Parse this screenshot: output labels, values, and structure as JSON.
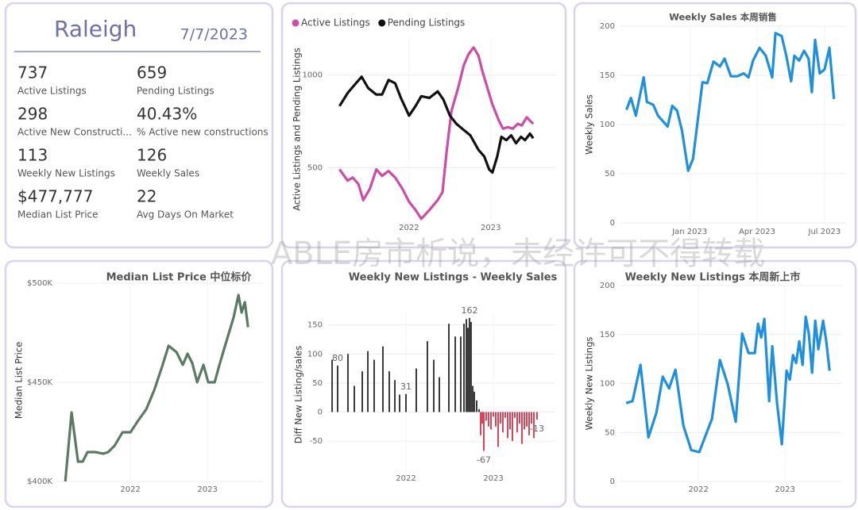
{
  "kpi": {
    "title": "Raleigh",
    "date": "7/7/2023",
    "items": [
      {
        "value": "737",
        "label": "Active Listings"
      },
      {
        "value": "659",
        "label": "Pending Listings"
      },
      {
        "value": "298",
        "label": "Active New Constructi..."
      },
      {
        "value": "40.43%",
        "label": "% Active new constructions"
      },
      {
        "value": "113",
        "label": "Weekly New Listings"
      },
      {
        "value": "126",
        "label": "Weekly Sales"
      },
      {
        "value": "$477,777",
        "label": "Median List Price"
      },
      {
        "value": "22",
        "label": "Avg Days On Market"
      }
    ]
  },
  "watermark": "ABLE房市析说，未经许可不得转载",
  "chart_data": [
    {
      "type": "line",
      "ylabel": "Active Listings and Pending Listings",
      "legend": "top-left",
      "grid": true,
      "xlim": [
        2021.0,
        2023.8
      ],
      "xticks": [
        2022,
        2023
      ],
      "ylim": [
        215,
        1200
      ],
      "yticks": [
        500,
        1000
      ],
      "series": [
        {
          "name": "Active Listings",
          "color": "#d04aa8",
          "x": [
            2021.15,
            2021.25,
            2021.31,
            2021.38,
            2021.44,
            2021.52,
            2021.6,
            2021.67,
            2021.75,
            2021.83,
            2021.92,
            2022.0,
            2022.08,
            2022.15,
            2022.25,
            2022.35,
            2022.41,
            2022.46,
            2022.52,
            2022.6,
            2022.67,
            2022.73,
            2022.79,
            2022.85,
            2022.9,
            2022.96,
            2023.02,
            2023.1,
            2023.15,
            2023.21,
            2023.27,
            2023.33,
            2023.38,
            2023.44,
            2023.48,
            2023.52
          ],
          "values": [
            491,
            430,
            447,
            412,
            325,
            386,
            491,
            456,
            482,
            447,
            386,
            316,
            272,
            224,
            272,
            325,
            368,
            588,
            807,
            930,
            1053,
            1114,
            1149,
            1105,
            1018,
            930,
            842,
            754,
            711,
            719,
            711,
            737,
            728,
            772,
            754,
            737
          ]
        },
        {
          "name": "Pending Listings",
          "color": "#111111",
          "x": [
            2021.15,
            2021.25,
            2021.35,
            2021.42,
            2021.5,
            2021.6,
            2021.67,
            2021.75,
            2021.83,
            2021.9,
            2022.0,
            2022.08,
            2022.15,
            2022.25,
            2022.35,
            2022.42,
            2022.5,
            2022.58,
            2022.65,
            2022.75,
            2022.85,
            2022.92,
            2022.98,
            2023.02,
            2023.08,
            2023.13,
            2023.19,
            2023.25,
            2023.31,
            2023.37,
            2023.42,
            2023.48,
            2023.52
          ],
          "values": [
            833,
            904,
            956,
            991,
            930,
            895,
            895,
            974,
            956,
            877,
            781,
            833,
            886,
            877,
            912,
            868,
            781,
            737,
            711,
            675,
            596,
            561,
            491,
            474,
            561,
            667,
            649,
            675,
            632,
            667,
            649,
            684,
            659
          ]
        }
      ]
    },
    {
      "type": "line",
      "title": "Weekly Sales 本周销售",
      "ylabel": "Weekly Sales",
      "grid": true,
      "color": "#1f8fe0",
      "xlim": [
        2022.74,
        2023.58
      ],
      "xticks": [
        {
          "value": 2023.0,
          "label": "Jan 2023"
        },
        {
          "value": 2023.25,
          "label": "Apr 2023"
        },
        {
          "value": 2023.5,
          "label": "Jul 2023"
        }
      ],
      "ylim": [
        0,
        200
      ],
      "yticks": [
        0,
        50,
        100,
        150,
        200
      ],
      "x": [
        2022.765,
        2022.782,
        2022.8,
        2022.829,
        2022.841,
        2022.865,
        2022.882,
        2022.918,
        2022.935,
        2022.953,
        2022.971,
        2022.994,
        2023.012,
        2023.047,
        2023.065,
        2023.088,
        2023.112,
        2023.129,
        2023.153,
        2023.176,
        2023.2,
        2023.218,
        2023.235,
        2023.259,
        2023.282,
        2023.306,
        2023.318,
        2023.341,
        2023.359,
        2023.376,
        2023.388,
        2023.406,
        2023.424,
        2023.441,
        2023.453,
        2023.465,
        2023.482,
        2023.5,
        2023.518,
        2023.535
      ],
      "values": [
        115,
        127,
        109,
        148,
        123,
        120,
        109,
        98,
        119,
        114,
        94,
        53,
        65,
        143,
        142,
        164,
        159,
        167,
        149,
        149,
        152,
        148,
        165,
        178,
        170,
        148,
        193,
        190,
        169,
        144,
        170,
        165,
        175,
        167,
        133,
        186,
        152,
        156,
        178,
        126
      ]
    },
    {
      "type": "line",
      "title": "Median List Price  中位标价",
      "ylabel": "Median List Price",
      "grid": true,
      "color": "#5a7a63",
      "xlim": [
        2021.05,
        2023.72
      ],
      "xticks": [
        2022,
        2023
      ],
      "ylim": [
        400000,
        502000
      ],
      "yticks": [
        {
          "value": 400000,
          "label": "$400K"
        },
        {
          "value": 450000,
          "label": "$450K"
        },
        {
          "value": 500000,
          "label": "$500K"
        }
      ],
      "x": [
        2021.155,
        2021.237,
        2021.32,
        2021.381,
        2021.443,
        2021.546,
        2021.649,
        2021.711,
        2021.794,
        2021.897,
        2022.0,
        2022.103,
        2022.206,
        2022.309,
        2022.412,
        2022.495,
        2022.598,
        2022.68,
        2022.742,
        2022.804,
        2022.866,
        2022.948,
        2023.01,
        2023.093,
        2023.155,
        2023.216,
        2023.278,
        2023.34,
        2023.402,
        2023.443,
        2023.485,
        2023.526
      ],
      "values": [
        400000,
        434800,
        410000,
        410000,
        414800,
        414800,
        414000,
        414800,
        418000,
        424800,
        424800,
        430800,
        436400,
        446000,
        458000,
        468400,
        465200,
        458800,
        464400,
        459600,
        450000,
        458800,
        450000,
        450000,
        458800,
        466800,
        474800,
        482800,
        494000,
        485200,
        490400,
        477777
      ]
    },
    {
      "type": "bar",
      "title": "Weekly New Listings - Weekly Sales",
      "ylabel": "Diff New Listing/sales",
      "grid": true,
      "color": "#3a3a3a",
      "negative_color": "#d9435a",
      "xlim": [
        2021.1,
        2023.7
      ],
      "xticks": [
        2022,
        2023
      ],
      "ylim": [
        -110,
        170
      ],
      "yticks": [
        -50,
        0,
        50,
        100,
        150
      ],
      "x": [
        2021.155,
        2021.218,
        2021.336,
        2021.409,
        2021.5,
        2021.564,
        2021.636,
        2021.736,
        2021.809,
        2021.873,
        2021.927,
        2022.0,
        2022.118,
        2022.245,
        2022.318,
        2022.382,
        2022.491,
        2022.564,
        2022.627,
        2022.664,
        2022.691,
        2022.709,
        2022.727,
        2022.745,
        2022.764,
        2022.782,
        2022.809,
        2022.836,
        2022.855,
        2022.873,
        2022.891,
        2022.918,
        2022.945,
        2022.973,
        2023.0,
        2023.027,
        2023.055,
        2023.082,
        2023.109,
        2023.136,
        2023.164,
        2023.191,
        2023.218,
        2023.245,
        2023.273,
        2023.3,
        2023.327,
        2023.355,
        2023.382,
        2023.409,
        2023.436,
        2023.464,
        2023.5
      ],
      "values": [
        90,
        80,
        100,
        45,
        70,
        105,
        90,
        113,
        70,
        55,
        30,
        31,
        75,
        122,
        90,
        60,
        152,
        130,
        130,
        152,
        160,
        145,
        162,
        155,
        45,
        35,
        20,
        5,
        -40,
        -20,
        -67,
        -15,
        -25,
        -30,
        -8,
        -25,
        -60,
        -20,
        -35,
        -10,
        -45,
        -30,
        -50,
        -10,
        -35,
        -20,
        -55,
        -30,
        -25,
        -40,
        -20,
        -45,
        -13
      ],
      "value_labels": [
        null,
        "80",
        null,
        null,
        null,
        null,
        null,
        null,
        null,
        null,
        null,
        "31",
        null,
        null,
        null,
        null,
        null,
        null,
        null,
        null,
        null,
        null,
        "162",
        null,
        null,
        null,
        null,
        null,
        null,
        null,
        "-67",
        null,
        null,
        null,
        null,
        null,
        null,
        null,
        null,
        null,
        null,
        null,
        null,
        null,
        null,
        null,
        null,
        null,
        null,
        null,
        null,
        null,
        "-13"
      ]
    },
    {
      "type": "line",
      "title": "Weekly New Listings  本周新上市",
      "ylabel": "Weekly New Listings",
      "grid": true,
      "color": "#1f8fe0",
      "xlim": [
        2021.09,
        2023.65
      ],
      "xticks": [
        2022,
        2023
      ],
      "ylim": [
        0,
        200
      ],
      "yticks": [
        0,
        50,
        100,
        150,
        200
      ],
      "x": [
        2021.165,
        2021.239,
        2021.33,
        2021.422,
        2021.514,
        2021.587,
        2021.661,
        2021.734,
        2021.826,
        2021.917,
        2022.009,
        2022.156,
        2022.248,
        2022.339,
        2022.431,
        2022.505,
        2022.578,
        2022.651,
        2022.688,
        2022.725,
        2022.761,
        2022.817,
        2022.853,
        2022.908,
        2022.963,
        2023.018,
        2023.055,
        2023.092,
        2023.128,
        2023.165,
        2023.202,
        2023.239,
        2023.275,
        2023.312,
        2023.349,
        2023.385,
        2023.44,
        2023.477,
        2023.514
      ],
      "values": [
        80,
        82,
        119,
        45,
        70,
        107,
        95,
        114,
        57,
        32,
        30,
        64,
        124,
        99,
        61,
        151,
        131,
        131,
        161,
        147,
        166,
        82,
        138,
        80,
        38,
        113,
        104,
        129,
        121,
        143,
        119,
        168,
        151,
        111,
        164,
        135,
        164,
        143,
        113
      ]
    }
  ]
}
